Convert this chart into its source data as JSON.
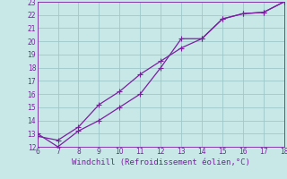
{
  "xlabel": "Windchill (Refroidissement éolien,°C)",
  "xlim": [
    6,
    18
  ],
  "ylim": [
    12,
    23
  ],
  "xticks": [
    6,
    7,
    8,
    9,
    10,
    11,
    12,
    13,
    14,
    15,
    16,
    17,
    18
  ],
  "yticks": [
    12,
    13,
    14,
    15,
    16,
    17,
    18,
    19,
    20,
    21,
    22,
    23
  ],
  "line_color": "#7b1fa2",
  "background_color": "#c8e8e8",
  "grid_color": "#a0c8c8",
  "line1_x": [
    6,
    7,
    8,
    9,
    10,
    11,
    12,
    13,
    14,
    15,
    16,
    17,
    18
  ],
  "line1_y": [
    13,
    12,
    13.2,
    14,
    15,
    16,
    18,
    20.2,
    20.2,
    21.7,
    22.1,
    22.2,
    23
  ],
  "line2_x": [
    6,
    7,
    8,
    9,
    10,
    11,
    12,
    13,
    14,
    15,
    16,
    17,
    18
  ],
  "line2_y": [
    12.8,
    12.5,
    13.5,
    15.2,
    16.2,
    17.5,
    18.5,
    19.5,
    20.2,
    21.7,
    22.1,
    22.2,
    23
  ],
  "marker": "+",
  "marker_size": 4,
  "linewidth": 0.9,
  "tick_fontsize": 5.5,
  "xlabel_fontsize": 6.5
}
